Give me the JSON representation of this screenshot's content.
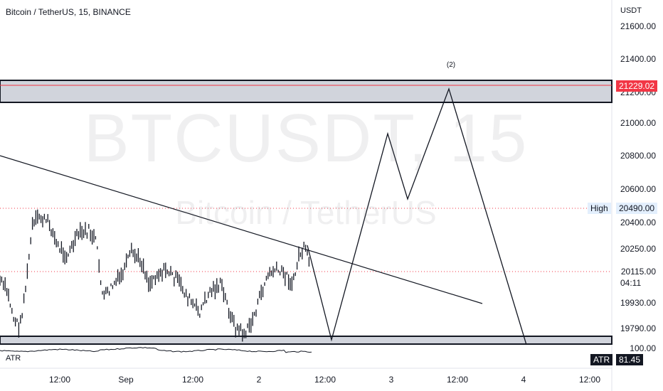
{
  "chart": {
    "title": "Bitcoin / TetherUS, 15, BINANCE",
    "watermark_symbol": "BTCUSDT, 15",
    "watermark_name": "Bitcoin / TetherUS",
    "price_axis_unit": "USDT",
    "price_axis_labels": [
      "21600.00",
      "21400.00",
      "21200.00",
      "21000.00",
      "20800.00",
      "20600.00",
      "20400.00",
      "20250.00",
      "20115.00",
      "19930.00",
      "19790.00",
      "100.00"
    ],
    "current_price": "21229.02",
    "high_label": "High",
    "high_value": "20490.00",
    "last_price": "20115.00",
    "countdown": "04:11",
    "wave_label": "(2)",
    "time_labels": [
      "12:00",
      "Sep",
      "12:00",
      "2",
      "12:00",
      "3",
      "12:00",
      "4",
      "12:00"
    ],
    "indicator": {
      "name": "ATR",
      "tag": "ATR",
      "value": "81.45"
    },
    "colors": {
      "red_line": "#f23645",
      "zone_fill": "#d1d4dc",
      "candle": "#131722"
    }
  }
}
